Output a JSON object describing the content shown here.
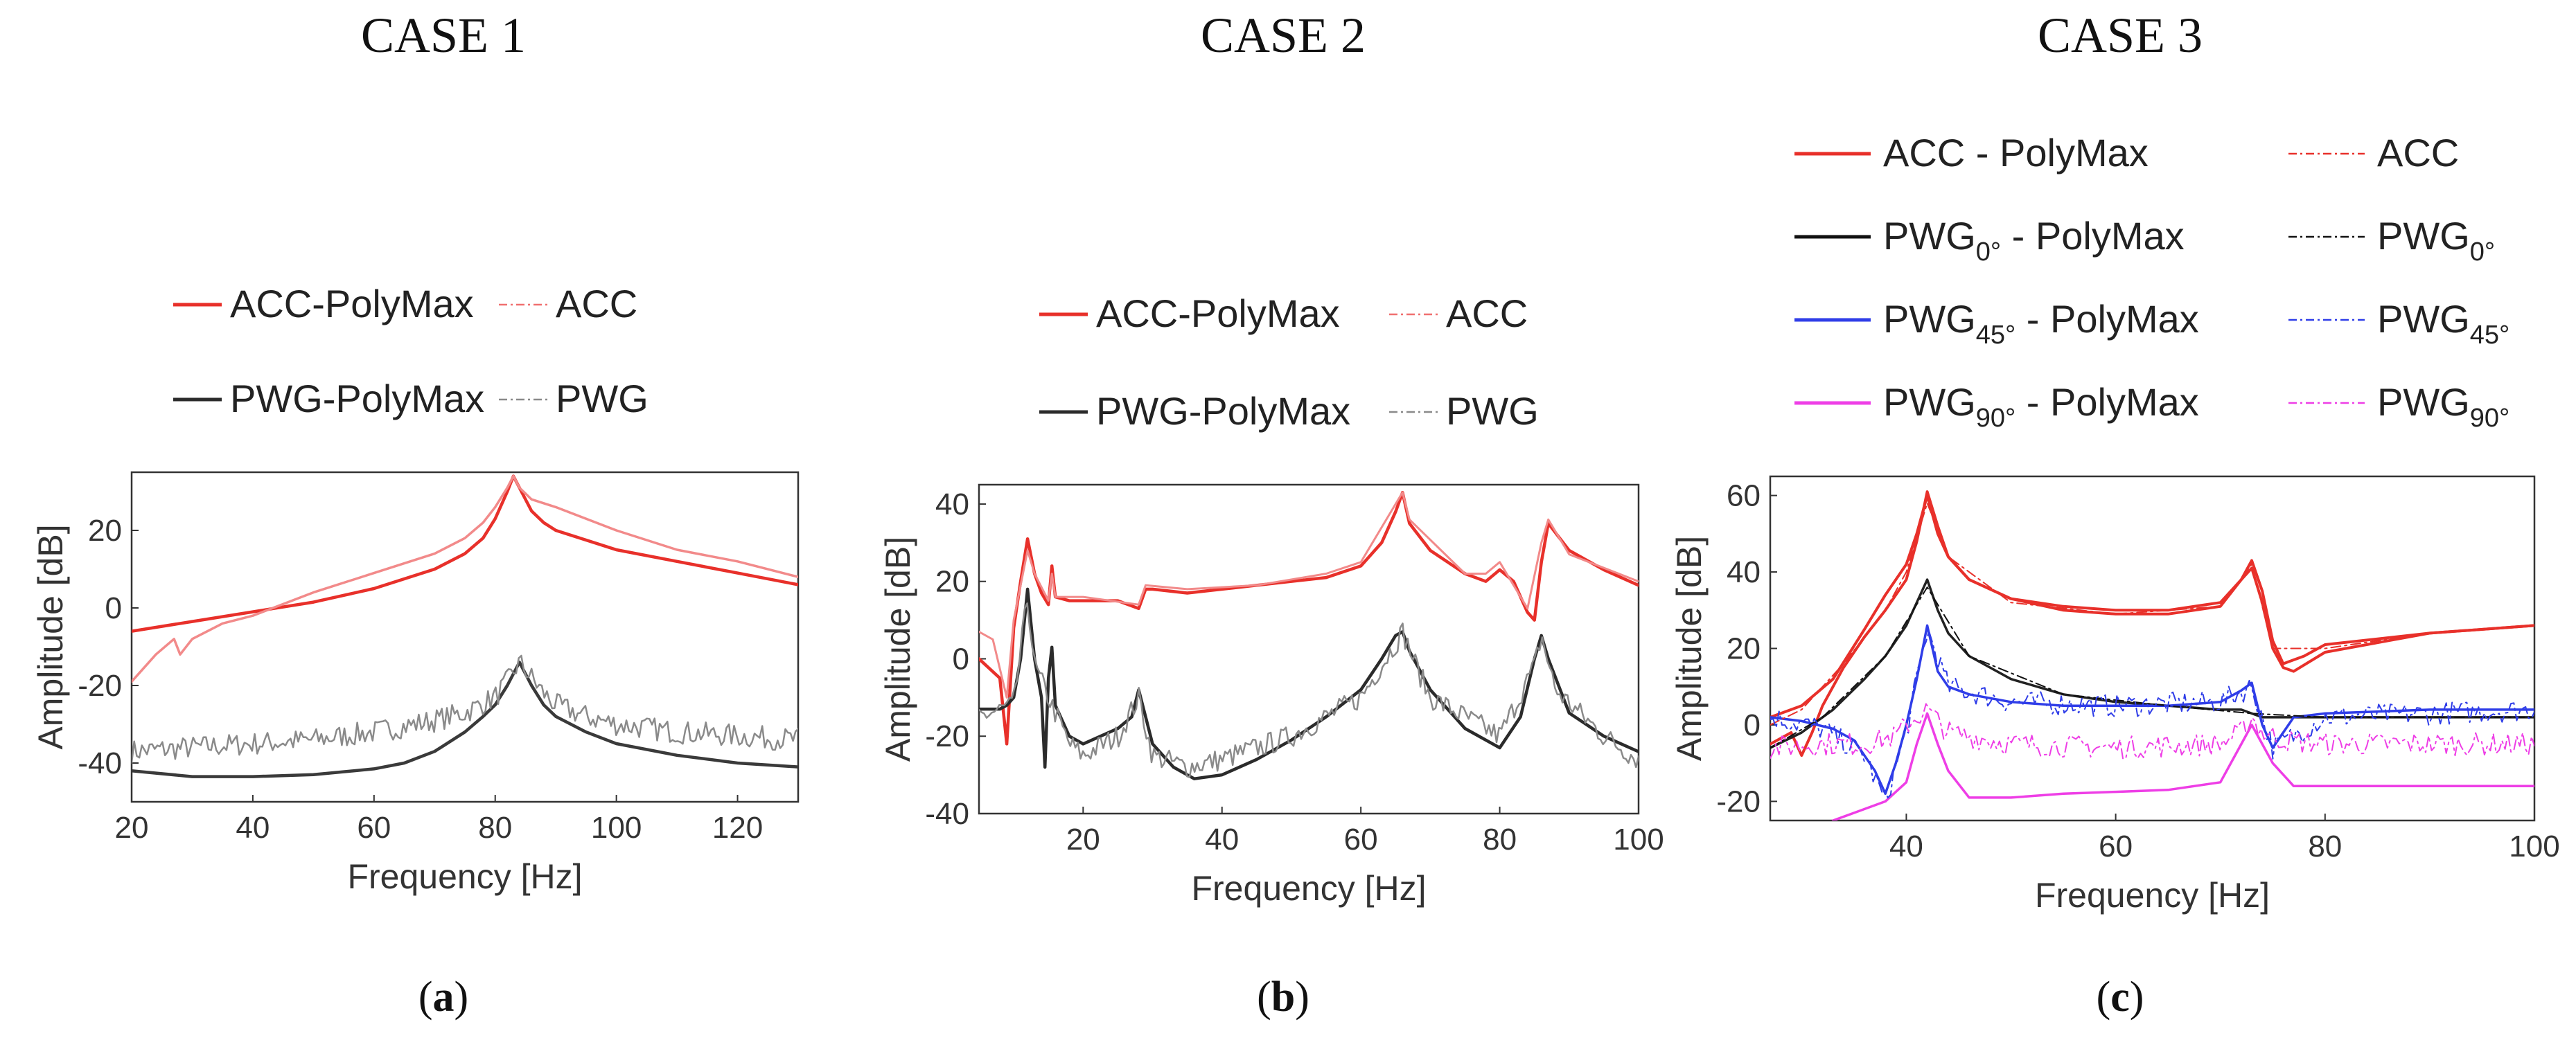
{
  "chart_data": [
    {
      "type": "line",
      "title": "CASE 1",
      "caption": [
        "(",
        "a",
        ")"
      ],
      "xlabel": "Frequency [Hz]",
      "ylabel": "Amplitude [dB]",
      "xlim": [
        20,
        130
      ],
      "ylim": [
        -50,
        35
      ],
      "xticks": [
        20,
        40,
        60,
        80,
        100,
        120
      ],
      "yticks": [
        -40,
        -20,
        0,
        20
      ],
      "legend": [
        {
          "label": "ACC-PolyMax",
          "color": "#e8302a",
          "style": "solid"
        },
        {
          "label": "ACC",
          "color": "#f07070",
          "style": "dashdot"
        },
        {
          "label": "PWG-PolyMax",
          "color": "#2b2b2b",
          "style": "solid"
        },
        {
          "label": "PWG",
          "color": "#8a8a8a",
          "style": "dashdot"
        }
      ],
      "series": [
        {
          "name": "ACC-PolyMax",
          "color": "#e8302a",
          "width": 4.5,
          "x": [
            20,
            30,
            40,
            50,
            60,
            70,
            75,
            78,
            80,
            82,
            83,
            84,
            86,
            88,
            90,
            100,
            110,
            120,
            130
          ],
          "y": [
            -6,
            -3.5,
            -1,
            1.5,
            5,
            10,
            14,
            18,
            23,
            30,
            34,
            31,
            25,
            22,
            20,
            15,
            12,
            9,
            6
          ]
        },
        {
          "name": "ACC",
          "color": "#f28a8a",
          "width": 3.5,
          "x": [
            20,
            24,
            27,
            28,
            30,
            35,
            40,
            50,
            60,
            70,
            75,
            78,
            80,
            82,
            83,
            84,
            86,
            88,
            90,
            100,
            110,
            120,
            130
          ],
          "y": [
            -19,
            -12,
            -8,
            -12,
            -8,
            -4,
            -2,
            4,
            9,
            14,
            18,
            22,
            26,
            31,
            34,
            31,
            28,
            27,
            26,
            20,
            15,
            12,
            8
          ]
        },
        {
          "name": "PWG-PolyMax",
          "color": "#3a3a3a",
          "width": 4.5,
          "x": [
            20,
            30,
            40,
            50,
            60,
            65,
            70,
            75,
            78,
            80,
            82,
            84,
            86,
            88,
            90,
            95,
            100,
            110,
            120,
            130
          ],
          "y": [
            -42,
            -43.5,
            -43.5,
            -43,
            -41.5,
            -40,
            -37,
            -32,
            -28,
            -25,
            -20,
            -14,
            -20,
            -25,
            -28,
            -32,
            -35,
            -38,
            -40,
            -41
          ]
        },
        {
          "name": "PWG",
          "color": "#8a8a8a",
          "width": 2.5,
          "noisy": true,
          "x": [
            20,
            30,
            40,
            50,
            60,
            70,
            75,
            80,
            82,
            84,
            86,
            88,
            90,
            95,
            100,
            110,
            120,
            130
          ],
          "y": [
            -37,
            -36,
            -35,
            -34,
            -32,
            -29,
            -27,
            -23,
            -19,
            -14,
            -18,
            -22,
            -25,
            -28,
            -30,
            -32,
            -33,
            -34
          ]
        }
      ]
    },
    {
      "type": "line",
      "title": "CASE 2",
      "caption": [
        "(",
        "b",
        ")"
      ],
      "xlabel": "Frequency [Hz]",
      "ylabel": "Amplitude [dB]",
      "xlim": [
        5,
        100
      ],
      "ylim": [
        -40,
        45
      ],
      "xticks": [
        20,
        40,
        60,
        80,
        100
      ],
      "yticks": [
        -40,
        -20,
        0,
        20,
        40
      ],
      "legend": [
        {
          "label": "ACC-PolyMax",
          "color": "#e8302a",
          "style": "solid"
        },
        {
          "label": "ACC",
          "color": "#f07070",
          "style": "dashdot"
        },
        {
          "label": "PWG-PolyMax",
          "color": "#2b2b2b",
          "style": "solid"
        },
        {
          "label": "PWG",
          "color": "#8a8a8a",
          "style": "dashdot"
        }
      ],
      "series": [
        {
          "name": "ACC-PolyMax",
          "color": "#e8302a",
          "width": 4.5,
          "x": [
            5,
            8,
            9,
            10,
            11,
            12,
            13,
            14,
            15,
            15.5,
            16,
            18,
            20,
            25,
            28,
            29,
            30,
            35,
            40,
            45,
            50,
            55,
            60,
            63,
            65,
            66,
            67,
            70,
            75,
            78,
            80,
            82,
            84,
            85,
            86,
            87,
            90,
            95,
            100
          ],
          "y": [
            0,
            -5,
            -22,
            8,
            20,
            31,
            22,
            17,
            14,
            24,
            16,
            15,
            15,
            15,
            13,
            18,
            18,
            17,
            18,
            19,
            20,
            21,
            24,
            30,
            38,
            43,
            35,
            28,
            22,
            20,
            23,
            20,
            12,
            10,
            25,
            35,
            28,
            23,
            19
          ]
        },
        {
          "name": "ACC",
          "color": "#f28a8a",
          "width": 3,
          "x": [
            5,
            7,
            9,
            10,
            12,
            13,
            15,
            15.5,
            16,
            20,
            28,
            29,
            35,
            45,
            55,
            60,
            65,
            66,
            67,
            75,
            78,
            80,
            84,
            86,
            87,
            90,
            100
          ],
          "y": [
            7,
            5,
            -10,
            10,
            28,
            22,
            15,
            22,
            16,
            16,
            14,
            19,
            18,
            19,
            22,
            25,
            40,
            43,
            36,
            22,
            22,
            25,
            13,
            30,
            36,
            27,
            20
          ]
        },
        {
          "name": "PWG-PolyMax",
          "color": "#2b2b2b",
          "width": 4.5,
          "x": [
            5,
            8,
            9,
            10,
            11,
            12,
            13,
            14,
            14.5,
            15,
            15.5,
            16,
            18,
            20,
            25,
            27,
            28,
            29,
            30,
            33,
            36,
            40,
            45,
            50,
            55,
            60,
            63,
            65,
            66,
            67,
            70,
            75,
            80,
            83,
            85,
            86,
            87,
            90,
            95,
            100
          ],
          "y": [
            -13,
            -13,
            -12,
            -10,
            0,
            18,
            0,
            -10,
            -28,
            -5,
            3,
            -12,
            -20,
            -22,
            -18,
            -15,
            -8,
            -15,
            -22,
            -28,
            -31,
            -30,
            -26,
            -21,
            -15,
            -8,
            0,
            6,
            7,
            2,
            -8,
            -18,
            -23,
            -15,
            0,
            6,
            0,
            -14,
            -20,
            -24
          ]
        },
        {
          "name": "PWG",
          "color": "#8a8a8a",
          "width": 2.5,
          "noisy": true,
          "x": [
            5,
            10,
            12,
            13,
            15,
            18,
            20,
            25,
            28,
            30,
            35,
            40,
            50,
            60,
            65,
            66,
            68,
            70,
            75,
            80,
            85,
            86,
            88,
            95,
            100
          ],
          "y": [
            -15,
            -12,
            16,
            -2,
            -10,
            -22,
            -25,
            -20,
            -10,
            -25,
            -28,
            -26,
            -20,
            -10,
            4,
            7,
            -2,
            -10,
            -15,
            -20,
            -2,
            6,
            -8,
            -20,
            -26
          ]
        }
      ]
    },
    {
      "type": "line",
      "title": "CASE 3",
      "caption": [
        "(",
        "c",
        ")"
      ],
      "xlabel": "Frequency [Hz]",
      "ylabel": "Amplitude [dB]",
      "xlim": [
        27,
        100
      ],
      "ylim": [
        -25,
        65
      ],
      "xticks": [
        40,
        60,
        80,
        100
      ],
      "yticks": [
        -20,
        0,
        20,
        40,
        60
      ],
      "legend": [
        {
          "main": "ACC",
          "sub": "",
          "suffix": " - PolyMax",
          "color": "#e8302a",
          "style": "solid"
        },
        {
          "main": "ACC",
          "sub": "",
          "suffix": "",
          "color": "#e8302a",
          "style": "dashdot"
        },
        {
          "main": "PWG",
          "sub": "0°",
          "suffix": " - PolyMax",
          "color": "#111111",
          "style": "solid"
        },
        {
          "main": "PWG",
          "sub": "0°",
          "suffix": "",
          "color": "#111111",
          "style": "dashdot"
        },
        {
          "main": "PWG",
          "sub": "45°",
          "suffix": " - PolyMax",
          "color": "#2f3de8",
          "style": "solid"
        },
        {
          "main": "PWG",
          "sub": "45°",
          "suffix": "",
          "color": "#2f3de8",
          "style": "dashdot"
        },
        {
          "main": "PWG",
          "sub": "90°",
          "suffix": " - PolyMax",
          "color": "#ee3ee6",
          "style": "solid"
        },
        {
          "main": "PWG",
          "sub": "90°",
          "suffix": "",
          "color": "#ee3ee6",
          "style": "dashdot"
        }
      ],
      "series": [
        {
          "name": "ACC - PolyMax (a)",
          "color": "#e8302a",
          "width": 4,
          "x": [
            27,
            30,
            33,
            36,
            38,
            40,
            41,
            42,
            43,
            44,
            46,
            50,
            55,
            60,
            65,
            70,
            72,
            73,
            74,
            75,
            76,
            78,
            80,
            90,
            100
          ],
          "y": [
            2,
            5,
            12,
            25,
            34,
            42,
            50,
            60,
            50,
            44,
            38,
            33,
            31,
            30,
            30,
            32,
            38,
            43,
            35,
            22,
            16,
            18,
            21,
            24,
            26
          ]
        },
        {
          "name": "ACC - PolyMax (b)",
          "color": "#e8302a",
          "width": 4,
          "x": [
            27,
            29,
            30,
            31,
            32,
            34,
            36,
            38,
            40,
            41,
            42,
            43,
            44,
            46,
            50,
            55,
            60,
            65,
            70,
            72,
            73,
            74,
            75,
            76,
            77,
            80,
            90,
            100
          ],
          "y": [
            -5,
            -2,
            -8,
            -2,
            5,
            15,
            23,
            30,
            38,
            48,
            61,
            52,
            44,
            38,
            33,
            30,
            29,
            29,
            31,
            38,
            41,
            32,
            20,
            15,
            14,
            19,
            24,
            26
          ]
        },
        {
          "name": "PWG0 - PolyMax",
          "color": "#222222",
          "width": 3.5,
          "x": [
            27,
            30,
            33,
            36,
            38,
            40,
            41,
            42,
            43,
            44,
            46,
            50,
            55,
            60,
            65,
            70,
            72,
            73,
            74,
            80,
            90,
            100
          ],
          "y": [
            -6,
            -2,
            4,
            12,
            18,
            26,
            32,
            38,
            30,
            24,
            18,
            12,
            8,
            6,
            5,
            4,
            4,
            3,
            2,
            2,
            2,
            2
          ]
        },
        {
          "name": "PWG45 - PolyMax",
          "color": "#2f3de8",
          "width": 3.5,
          "x": [
            27,
            30,
            33,
            35,
            37,
            38,
            39,
            40,
            41,
            42,
            43,
            44,
            46,
            50,
            55,
            60,
            65,
            70,
            72,
            73,
            74,
            75,
            77,
            80,
            90,
            100
          ],
          "y": [
            2,
            1,
            -1,
            -4,
            -12,
            -18,
            -10,
            0,
            12,
            26,
            14,
            10,
            8,
            6,
            5,
            5,
            5,
            6,
            9,
            11,
            0,
            -6,
            2,
            3,
            4,
            4
          ]
        },
        {
          "name": "PWG90 - PolyMax",
          "color": "#ee3ee6",
          "width": 3.5,
          "x": [
            33,
            35,
            38,
            40,
            41,
            42,
            43,
            44,
            46,
            50,
            55,
            60,
            65,
            70,
            72,
            73,
            74,
            75,
            77,
            80,
            90,
            100
          ],
          "y": [
            -25,
            -23,
            -20,
            -15,
            -5,
            3,
            -5,
            -12,
            -19,
            -19,
            -18,
            -17.5,
            -17,
            -15,
            -5,
            0,
            -5,
            -10,
            -16,
            -16,
            -16,
            -16
          ]
        },
        {
          "name": "ACC",
          "color": "#e8302a",
          "width": 2,
          "dashed": true,
          "x": [
            27,
            30,
            34,
            38,
            40,
            42,
            44,
            50,
            60,
            70,
            73,
            75,
            80,
            90,
            100
          ],
          "y": [
            0,
            4,
            16,
            30,
            40,
            58,
            44,
            32,
            29,
            31,
            42,
            20,
            20,
            24,
            26
          ]
        },
        {
          "name": "PWG0",
          "color": "#111111",
          "width": 2,
          "dashed": true,
          "x": [
            27,
            32,
            38,
            42,
            46,
            55,
            65,
            73,
            80,
            90,
            100
          ],
          "y": [
            -6,
            2,
            18,
            36,
            18,
            8,
            5,
            3,
            2,
            2,
            2
          ]
        },
        {
          "name": "PWG45",
          "color": "#2f3de8",
          "width": 2,
          "dashed": true,
          "noisy": true,
          "x": [
            27,
            32,
            36,
            38,
            40,
            42,
            44,
            50,
            60,
            70,
            73,
            75,
            80,
            90,
            100
          ],
          "y": [
            2,
            -1,
            -8,
            -20,
            -2,
            25,
            10,
            6,
            5,
            6,
            10,
            -6,
            2,
            3,
            4
          ]
        },
        {
          "name": "PWG90",
          "color": "#ee3ee6",
          "width": 2,
          "dashed": true,
          "noisy": true,
          "x": [
            27,
            32,
            36,
            39,
            40,
            42,
            44,
            50,
            60,
            70,
            72,
            73,
            74,
            76,
            80,
            90,
            100
          ],
          "y": [
            -6,
            -5,
            -5,
            -3,
            0,
            4,
            -2,
            -5,
            -6,
            -5,
            -2,
            2,
            -2,
            -4,
            -5,
            -5,
            -5
          ]
        }
      ]
    }
  ]
}
